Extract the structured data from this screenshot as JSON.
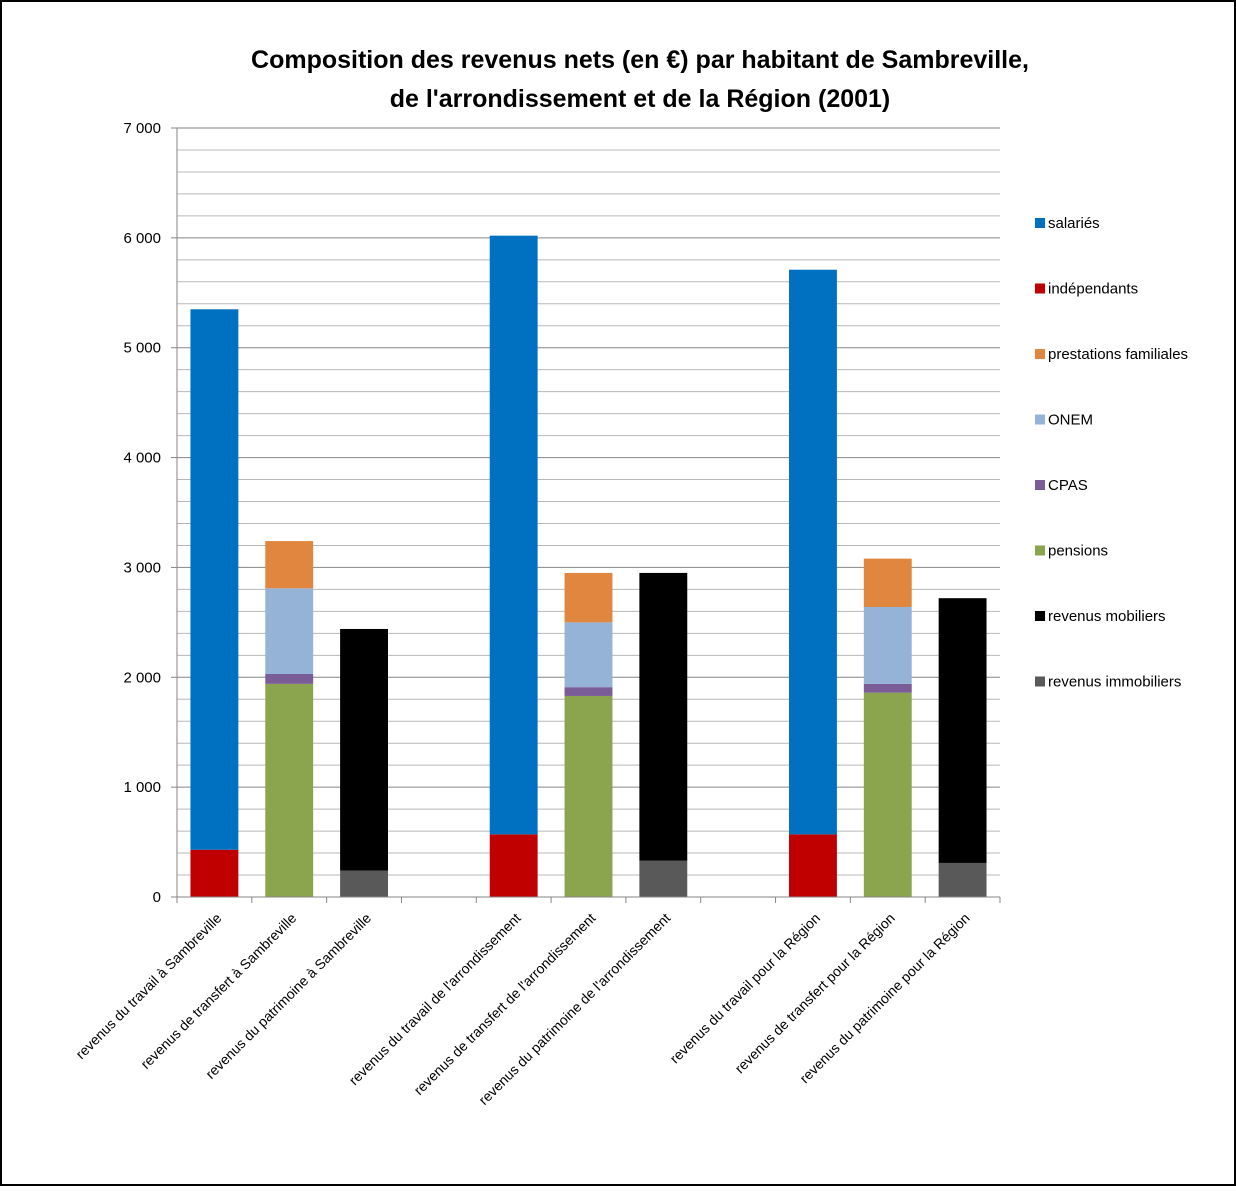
{
  "chart_data": {
    "type": "bar",
    "stacked": true,
    "title": "Composition des revenus nets (en €) par habitant de Sambreville, de l'arrondissement et de la Région (2001)",
    "title_lines": [
      "Composition  des revenus nets (en €) par habitant de Sambreville,",
      "de l'arrondissement  et de la Région (2001)"
    ],
    "categories": [
      "revenus du travail à Sambreville",
      "revenus de transfert à Sambreville",
      "revenus du patrimoine à Sambreville",
      "",
      "revenus du travail  de l'arrondissement",
      "revenus de transfert de l'arrondissement",
      "revenus du patrimoine de l'arrondissement",
      "",
      "revenus du travail  pour la Région",
      "revenus de transfert pour la Région",
      "revenus du patrimoine pour la Région"
    ],
    "ylim": [
      0,
      7000
    ],
    "yticks": [
      0,
      1000,
      2000,
      3000,
      4000,
      5000,
      6000,
      7000
    ],
    "ytick_labels": [
      "0",
      "1 000",
      "2 000",
      "3 000",
      "4 000",
      "5 000",
      "6 000",
      "7 000"
    ],
    "minor_gridlines_step": 200,
    "grid": true,
    "legend_position": "right",
    "series": [
      {
        "name": "revenus immobiliers",
        "color": "#595959",
        "values": [
          0,
          0,
          240,
          null,
          0,
          0,
          330,
          null,
          0,
          0,
          310
        ]
      },
      {
        "name": "revenus mobiliers",
        "color": "#000000",
        "values": [
          0,
          0,
          2200,
          null,
          0,
          0,
          2620,
          null,
          0,
          0,
          2410
        ]
      },
      {
        "name": "pensions",
        "color": "#8BA54E",
        "values": [
          0,
          1940,
          0,
          null,
          0,
          1830,
          0,
          null,
          0,
          1860,
          0
        ]
      },
      {
        "name": "CPAS",
        "color": "#7A5C96",
        "values": [
          0,
          90,
          0,
          null,
          0,
          80,
          0,
          null,
          0,
          80,
          0
        ]
      },
      {
        "name": "ONEM",
        "color": "#95B3D7",
        "values": [
          0,
          780,
          0,
          null,
          0,
          590,
          0,
          null,
          0,
          700,
          0
        ]
      },
      {
        "name": "prestations familiales",
        "color": "#E0863E",
        "values": [
          0,
          430,
          0,
          null,
          0,
          450,
          0,
          null,
          0,
          440,
          0
        ]
      },
      {
        "name": "indépendants",
        "color": "#C00000",
        "values": [
          430,
          0,
          0,
          null,
          570,
          0,
          0,
          null,
          570,
          0,
          0
        ]
      },
      {
        "name": "salariés",
        "color": "#0070C0",
        "values": [
          4920,
          0,
          0,
          null,
          5450,
          0,
          0,
          null,
          5140,
          0,
          0
        ]
      }
    ],
    "legend_order": [
      "salariés",
      "indépendants",
      "prestations familiales",
      "ONEM",
      "CPAS",
      "pensions",
      "revenus mobiliers",
      "revenus immobiliers"
    ]
  }
}
